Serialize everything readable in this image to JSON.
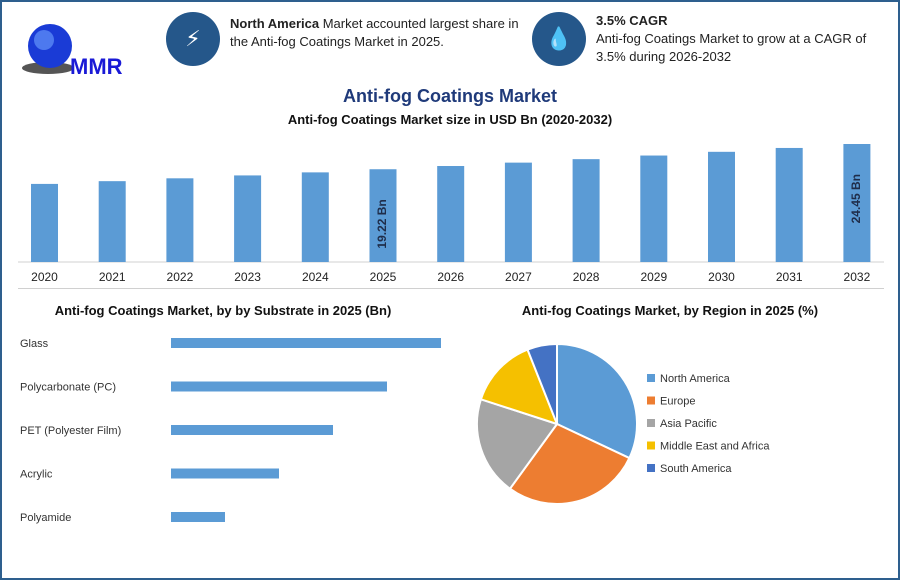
{
  "header": {
    "logo_text": "MMR",
    "card1": {
      "icon": "lightning-icon",
      "bold": "North America",
      "text": " Market accounted largest share in the Anti-fog Coatings Market in 2025."
    },
    "card2": {
      "icon": "droplet-icon",
      "bold": "3.5% CAGR",
      "text": "Anti-fog Coatings Market to grow at a CAGR of 3.5% during 2026-2032"
    }
  },
  "main_title": "Anti-fog Coatings Market",
  "colors": {
    "bar": "#5b9bd5",
    "accent": "#25578a",
    "title": "#1f3a7a"
  },
  "chart_data": [
    {
      "type": "bar",
      "title": "Anti-fog Coatings Market size in USD Bn (2020-2032)",
      "categories": [
        "2020",
        "2021",
        "2022",
        "2023",
        "2024",
        "2025",
        "2026",
        "2027",
        "2028",
        "2029",
        "2030",
        "2031",
        "2032"
      ],
      "values": [
        16.18,
        16.75,
        17.34,
        17.94,
        18.57,
        19.22,
        19.89,
        20.59,
        21.31,
        22.06,
        22.83,
        23.63,
        24.45
      ],
      "data_labels": {
        "2025": "19.22 Bn",
        "2032": "24.45 Bn"
      },
      "ylim": [
        0,
        26
      ]
    },
    {
      "type": "bar",
      "orientation": "horizontal",
      "title": "Anti-fog Coatings Market, by by Substrate in 2025 (Bn)",
      "categories": [
        "Glass",
        "Polycarbonate (PC)",
        "PET (Polyester Film)",
        "Acrylic",
        "Polyamide"
      ],
      "values": [
        5,
        4,
        3,
        2,
        1
      ]
    },
    {
      "type": "pie",
      "title": "Anti-fog Coatings Market, by Region in 2025 (%)",
      "legend": "right",
      "categories": [
        "North America",
        "Europe",
        "Asia Pacific",
        "Middle East and Africa",
        "South America"
      ],
      "values": [
        32,
        28,
        20,
        14,
        6
      ],
      "colors": [
        "#5b9bd5",
        "#ed7d31",
        "#a5a5a5",
        "#f5c000",
        "#4472c4"
      ]
    }
  ]
}
